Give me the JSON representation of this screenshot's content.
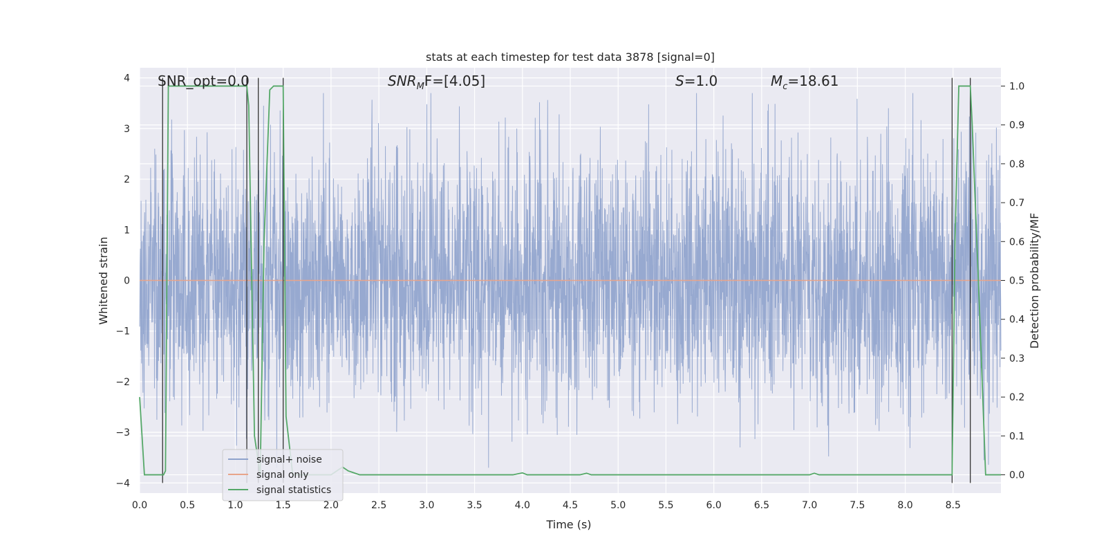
{
  "chart_data": {
    "type": "line",
    "title": "stats at each timestep for test data 3878 [signal=0]",
    "xlabel": "Time (s)",
    "ylabel": "Whitened strain",
    "y2label": "Detection probability/MF",
    "xlim": [
      0.0,
      9.0
    ],
    "ylim": [
      -4.2,
      4.2
    ],
    "y2lim": [
      -0.047,
      1.047
    ],
    "xticks": [
      0.0,
      0.5,
      1.0,
      1.5,
      2.0,
      2.5,
      3.0,
      3.5,
      4.0,
      4.5,
      5.0,
      5.5,
      6.0,
      6.5,
      7.0,
      7.5,
      8.0,
      8.5
    ],
    "xtick_labels": [
      "0.0",
      "0.5",
      "1.0",
      "1.5",
      "2.0",
      "2.5",
      "3.0",
      "3.5",
      "4.0",
      "4.5",
      "5.0",
      "5.5",
      "6.0",
      "6.5",
      "7.0",
      "7.5",
      "8.0",
      "8.5"
    ],
    "yticks": [
      4,
      3,
      2,
      1,
      0,
      -1,
      -2,
      -3,
      -4
    ],
    "ytick_labels": [
      "4",
      "3",
      "2",
      "1",
      "0",
      "−1",
      "−2",
      "−3",
      "−4"
    ],
    "y2ticks": [
      1.0,
      0.9,
      0.8,
      0.7,
      0.6,
      0.5,
      0.4,
      0.3,
      0.2,
      0.1,
      0.0
    ],
    "y2tick_labels": [
      "1.0",
      "0.9",
      "0.8",
      "0.7",
      "0.6",
      "0.5",
      "0.4",
      "0.3",
      "0.2",
      "0.1",
      "0.0"
    ],
    "grid": true,
    "annotations": {
      "snr_opt": "SNR_opt=0.0",
      "snr_mf_sym": "SNR",
      "snr_mf_sub": "M",
      "snr_mf_rest": "F=[4.05]",
      "s_sym": "S",
      "s_rest": "=1.0",
      "mc_sym": "M",
      "mc_sub": "c",
      "mc_rest": "=18.61"
    },
    "legend": {
      "position": "lower-left",
      "entries": [
        "signal+ noise",
        "signal only",
        "signal statistics"
      ]
    },
    "series": [
      {
        "name": "signal+ noise",
        "color": "#8ea2cc",
        "description": "whitened noisy strain, roughly Gaussian with sigma ~1.2, peaks to about +/-3.7",
        "t_range": [
          0.0,
          9.0
        ],
        "amplitude_range": [
          -3.7,
          3.7
        ]
      },
      {
        "name": "signal only",
        "color": "#e8a48a",
        "x": [
          0.0,
          9.0
        ],
        "y": [
          0.0,
          0.0
        ]
      },
      {
        "name": "signal statistics",
        "color": "#55a868",
        "axis": "right",
        "x": [
          0.0,
          0.05,
          0.25,
          0.27,
          0.3,
          1.0,
          1.12,
          1.14,
          1.2,
          1.26,
          1.3,
          1.36,
          1.4,
          1.5,
          1.53,
          1.6,
          2.0,
          2.12,
          2.18,
          2.3,
          2.5,
          3.9,
          4.0,
          4.05,
          4.6,
          4.67,
          4.72,
          5.0,
          7.0,
          7.05,
          7.1,
          8.49,
          8.52,
          8.56,
          8.68,
          8.7,
          8.78,
          8.84,
          9.0
        ],
        "y": [
          0.2,
          0.0,
          0.0,
          0.01,
          1.0,
          1.0,
          1.0,
          0.95,
          0.1,
          0.0,
          0.6,
          0.99,
          1.0,
          1.0,
          0.15,
          0.0,
          0.0,
          0.02,
          0.01,
          0.0,
          0.0,
          0.0,
          0.005,
          0.0,
          0.0,
          0.004,
          0.0,
          0.0,
          0.0,
          0.004,
          0.0,
          0.0,
          0.6,
          1.0,
          1.0,
          0.9,
          0.4,
          0.0,
          0.0
        ]
      }
    ],
    "detection_markers": {
      "color": "#333333",
      "description": "thin vertical black lines marking predicted events",
      "lines": [
        {
          "x": 0.24,
          "y_from": -4.0,
          "y_to": 4.0
        },
        {
          "x": 1.12,
          "y_from": -4.0,
          "y_to": 4.0
        },
        {
          "x": 1.24,
          "y_from": -4.0,
          "y_to": 4.0
        },
        {
          "x": 1.5,
          "y_from": -4.0,
          "y_to": 4.0
        },
        {
          "x": 8.49,
          "y_from": -4.0,
          "y_to": 4.0
        },
        {
          "x": 8.68,
          "y_from": -4.0,
          "y_to": 4.0
        }
      ]
    }
  }
}
